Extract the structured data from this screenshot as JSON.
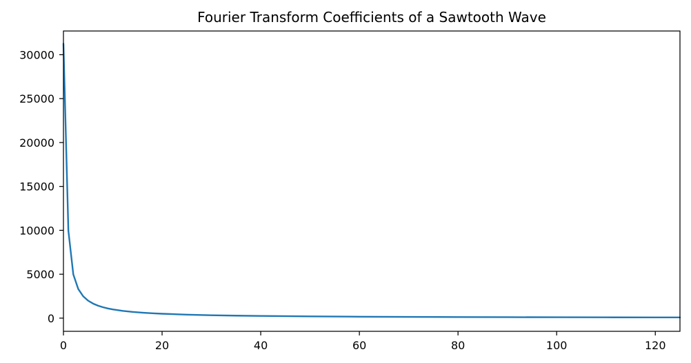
{
  "chart_data": {
    "type": "line",
    "title": "Fourier Transform Coefficients of a Sawtooth Wave",
    "xlabel": "",
    "ylabel": "",
    "xlim": [
      0,
      125
    ],
    "ylim": [
      -1500,
      32700
    ],
    "grid": false,
    "legend": "none",
    "x_ticks": [
      0,
      20,
      40,
      60,
      80,
      100,
      120
    ],
    "y_ticks": [
      0,
      5000,
      10000,
      15000,
      20000,
      25000,
      30000
    ],
    "series": [
      {
        "color": "#1f77b4",
        "x": [
          0,
          1,
          2,
          3,
          4,
          5,
          6,
          7,
          8,
          9,
          10,
          12,
          14,
          16,
          18,
          20,
          25,
          30,
          35,
          40,
          50,
          60,
          70,
          80,
          90,
          100,
          110,
          120,
          125
        ],
        "y": [
          31250,
          9950,
          4980,
          3320,
          2490,
          1990,
          1660,
          1420,
          1245,
          1105,
          995,
          830,
          710,
          620,
          555,
          500,
          400,
          330,
          285,
          250,
          200,
          165,
          142,
          125,
          111,
          100,
          90,
          83,
          80
        ]
      }
    ]
  }
}
